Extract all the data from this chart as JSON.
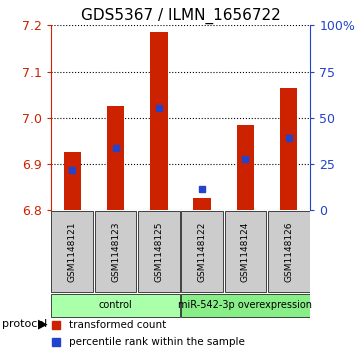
{
  "title": "GDS5367 / ILMN_1656722",
  "samples": [
    "GSM1148121",
    "GSM1148123",
    "GSM1148125",
    "GSM1148122",
    "GSM1148124",
    "GSM1148126"
  ],
  "bar_bottoms": [
    6.8,
    6.8,
    6.8,
    6.8,
    6.8,
    6.8
  ],
  "bar_tops": [
    6.925,
    7.025,
    7.185,
    6.825,
    6.985,
    7.065
  ],
  "percentile_values": [
    6.887,
    6.935,
    7.02,
    6.845,
    6.91,
    6.955
  ],
  "ylim": [
    6.8,
    7.2
  ],
  "yticks": [
    6.8,
    6.9,
    7.0,
    7.1,
    7.2
  ],
  "right_yticks": [
    0,
    25,
    50,
    75,
    100
  ],
  "right_ytick_labels": [
    "0",
    "25",
    "50",
    "75",
    "100%"
  ],
  "bar_color": "#cc2200",
  "blue_color": "#2244cc",
  "protocol_groups": [
    {
      "label": "control",
      "indices": [
        0,
        1,
        2
      ],
      "color": "#aaffaa"
    },
    {
      "label": "miR-542-3p overexpression",
      "indices": [
        3,
        4,
        5
      ],
      "color": "#88ee88"
    }
  ],
  "legend_items": [
    {
      "label": "transformed count",
      "color": "#cc2200"
    },
    {
      "label": "percentile rank within the sample",
      "color": "#2244cc"
    }
  ],
  "protocol_label": "protocol",
  "background_color": "#ffffff",
  "sample_bg_color": "#cccccc",
  "title_fontsize": 11
}
